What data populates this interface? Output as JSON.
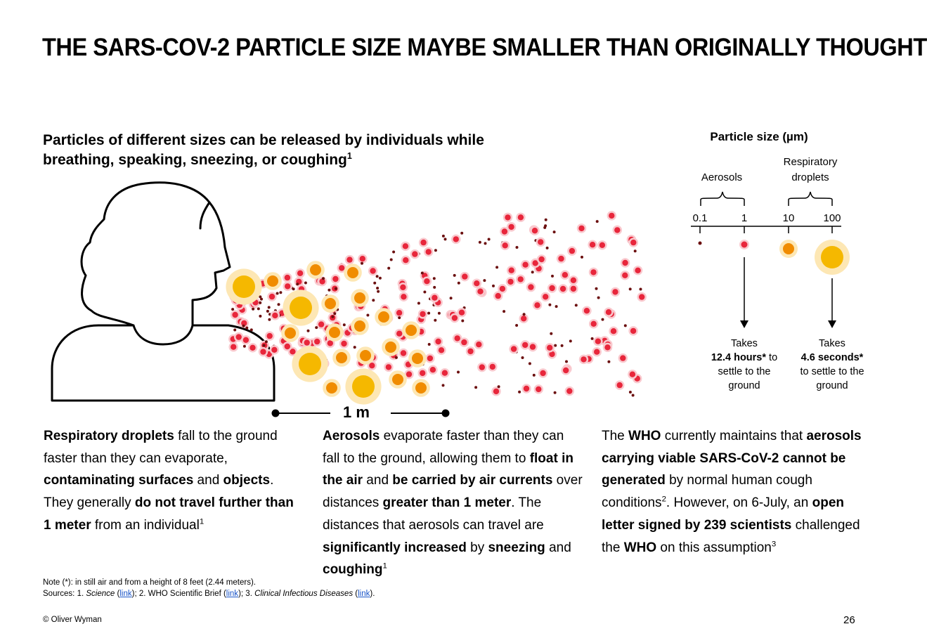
{
  "title": "THE SARS-COV-2 PARTICLE SIZE MAYBE SMALLER THAN ORIGINALLY THOUGHT",
  "subtitle": {
    "text": "Particles of different sizes can be released by individuals while breathing, speaking, sneezing, or coughing",
    "footnote": "1"
  },
  "illustration": {
    "distance_label": "1 m",
    "colors": {
      "droplet_large": "#f5b800",
      "droplet_medium": "#f08c00",
      "aerosol": "#e8263b",
      "fine": "#6b0f0f",
      "halo": "#fde7b4"
    }
  },
  "particle_panel": {
    "title": "Particle size (µm)",
    "aerosols_label": "Aerosols",
    "droplets_label": "Respiratory droplets",
    "ticks": [
      "0.1",
      "1",
      "10",
      "100"
    ],
    "aerosol_settle": {
      "line1": "Takes",
      "bold": "12.4 hours*",
      "rest": "to settle to the ground"
    },
    "droplet_settle": {
      "line1": "Takes",
      "bold": "4.6 seconds*",
      "rest": "to settle to the ground"
    }
  },
  "columns": {
    "col1": {
      "p1b": "Respiratory droplets",
      "p1": " fall to the ground faster than they can evaporate, ",
      "p2b": "contaminating surfaces",
      "p2": " and ",
      "p3b": "objects",
      "p3": ". They generally ",
      "p4b": "do not travel further than 1 meter",
      "p4": " from an individual",
      "sup": "1"
    },
    "col2": {
      "p1b": "Aerosols",
      "p1": " evaporate faster than they can fall to the ground, allowing them to ",
      "p2b": "float in the air",
      "p2": " and ",
      "p3b": "be carried by air currents",
      "p3": " over distances ",
      "p4b": "greater than 1 meter",
      "p4": ". The distances that aerosols can travel are ",
      "p5b": "significantly increased",
      "p5": " by ",
      "p6b": "sneezing",
      "p6": " and ",
      "p7b": "coughing",
      "sup": "1"
    },
    "col3": {
      "p1": "The ",
      "p1b": "WHO",
      "p2": " currently maintains that ",
      "p2b": "aerosols carrying viable SARS-CoV-2 cannot be generated",
      "p3": " by normal human cough conditions",
      "sup2": "2",
      "p4": ". However, on 6-July, an ",
      "p4b": "open letter signed by 239 scientists",
      "p5": " challenged the ",
      "p5b": "WHO",
      "p6": " on this assumption",
      "sup3": "3"
    }
  },
  "note": "Note (*): in still air and from a height of 8 feet (2.44 meters).",
  "sources": {
    "prefix": "Sources: 1. ",
    "s1": "Science",
    "link": "link",
    "s2": "; 2. WHO Scientific Brief (",
    "s3pre": "; 3. ",
    "s3": "Clinical Infectious Diseases",
    "end": ")."
  },
  "copyright": "© Oliver Wyman",
  "page_number": "26"
}
